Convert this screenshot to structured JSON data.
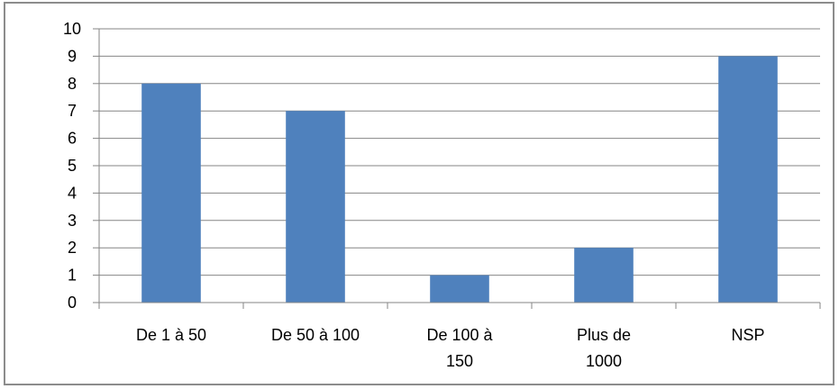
{
  "chart_data": {
    "type": "bar",
    "categories": [
      [
        "De 1 à 50"
      ],
      [
        "De 50 à 100"
      ],
      [
        "De 100 à",
        "150"
      ],
      [
        "Plus de",
        "1000"
      ],
      [
        "NSP"
      ]
    ],
    "values": [
      8,
      7,
      1,
      2,
      9
    ],
    "title": "",
    "xlabel": "",
    "ylabel": "",
    "ylim": [
      0,
      10
    ],
    "yticks": [
      "0",
      "1",
      "2",
      "3",
      "4",
      "5",
      "6",
      "7",
      "8",
      "9",
      "10"
    ],
    "grid": true,
    "legend": "none",
    "bar_color": "#4f81bd",
    "grid_color": "#868686",
    "axis_color": "#868686"
  }
}
